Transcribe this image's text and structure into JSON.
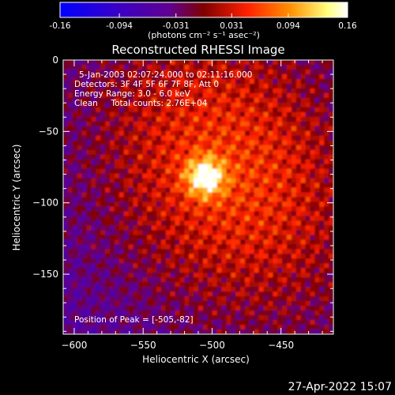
{
  "chart_data": {
    "type": "heatmap",
    "title": "Reconstructed RHESSI Image",
    "xlabel": "Heliocentric X (arcsec)",
    "ylabel": "Heliocentric Y (arcsec)",
    "xlim": [
      -608,
      -412
    ],
    "ylim": [
      -192,
      0
    ],
    "x_ticks": [
      -600,
      -550,
      -500,
      -450
    ],
    "y_ticks": [
      0,
      -50,
      -100,
      -150
    ],
    "colorbar": {
      "min": -0.16,
      "max": 0.16,
      "tick_labels": [
        "-0.16",
        "-0.094",
        "-0.031",
        "0.031",
        "0.094",
        "0.16"
      ],
      "tick_values": [
        -0.16,
        -0.094,
        -0.031,
        0.031,
        0.094,
        0.16
      ],
      "unit_label": "(photons cm⁻² s⁻¹ asec⁻²)",
      "colors": [
        "#0000ff",
        "#3f00c0",
        "#600090",
        "#800000",
        "#ff2000",
        "#ff9000",
        "#ffff80",
        "#ffffff"
      ]
    },
    "annotations": [
      "5-Jan-2003 02:07:24.000 to 02:11:16.000",
      "Detectors: 3F 4F 5F 6F 7F 8F, Att 0",
      "Energy Range: 3.0 - 6.0 keV",
      "Clean     Total counts: 2.76E+04"
    ],
    "peak_label": "Position of Peak = [-505,-82]",
    "peak": {
      "x": -505,
      "y": -82
    },
    "grid": false
  },
  "footer": {
    "timestamp": "27-Apr-2022 15:07"
  }
}
